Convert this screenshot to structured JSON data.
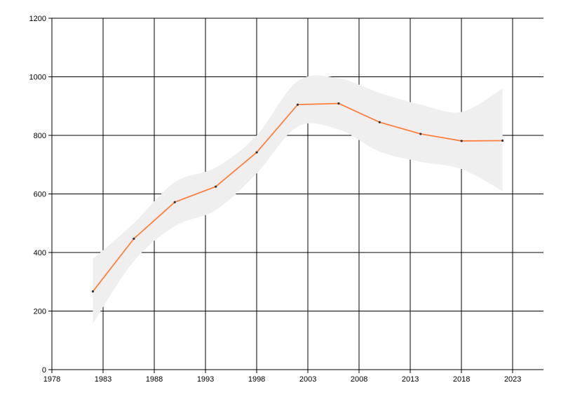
{
  "chart_data": {
    "type": "line",
    "title": "",
    "xlabel": "",
    "ylabel": "",
    "xlim": [
      1978,
      2026
    ],
    "ylim": [
      0,
      1200
    ],
    "x_ticks": [
      "1978",
      "1983",
      "1988",
      "1993",
      "1998",
      "2003",
      "2008",
      "2013",
      "2018",
      "2023"
    ],
    "y_ticks": [
      "0",
      "200",
      "400",
      "600",
      "800",
      "1000",
      "1200"
    ],
    "grid": true,
    "legend": "none",
    "series": [
      {
        "color": "#ff7f3f",
        "marker_color": "#333333",
        "points": [
          {
            "x": 1982,
            "y": 267
          },
          {
            "x": 1986,
            "y": 447
          },
          {
            "x": 1990,
            "y": 572
          },
          {
            "x": 1994,
            "y": 625
          },
          {
            "x": 1998,
            "y": 742
          },
          {
            "x": 2002,
            "y": 905
          },
          {
            "x": 2006,
            "y": 909
          },
          {
            "x": 2010,
            "y": 845
          },
          {
            "x": 2014,
            "y": 805
          },
          {
            "x": 2018,
            "y": 781
          },
          {
            "x": 2022,
            "y": 782
          }
        ]
      }
    ],
    "band": {
      "color": "#efefef",
      "points": [
        {
          "x": 1982,
          "lower": 157,
          "upper": 378
        },
        {
          "x": 1986,
          "lower": 370,
          "upper": 500
        },
        {
          "x": 1990,
          "lower": 490,
          "upper": 640
        },
        {
          "x": 1994,
          "lower": 545,
          "upper": 690
        },
        {
          "x": 1998,
          "lower": 670,
          "upper": 800
        },
        {
          "x": 2002,
          "lower": 830,
          "upper": 985
        },
        {
          "x": 2006,
          "lower": 820,
          "upper": 995
        },
        {
          "x": 2010,
          "lower": 745,
          "upper": 945
        },
        {
          "x": 2014,
          "lower": 710,
          "upper": 905
        },
        {
          "x": 2018,
          "lower": 685,
          "upper": 880
        },
        {
          "x": 2022,
          "lower": 610,
          "upper": 960
        }
      ]
    }
  }
}
